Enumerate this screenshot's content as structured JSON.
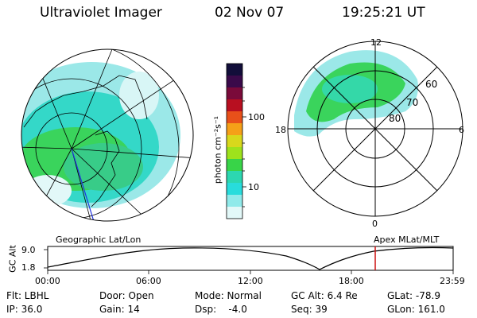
{
  "header": {
    "title": "Ultraviolet Imager",
    "date": "02 Nov 07",
    "time": "19:25:21 UT"
  },
  "colorbar": {
    "unit_label": "photon cm⁻²s⁻¹",
    "ticks": [
      "100",
      "10"
    ],
    "colors": [
      "#120e3a",
      "#3a0a4a",
      "#7a0a3a",
      "#b80f20",
      "#e8501a",
      "#f5a018",
      "#d8d81c",
      "#9ee21c",
      "#38d448",
      "#2cd7b0",
      "#28dcdc",
      "#90eaea",
      "#e2f8f8"
    ]
  },
  "left_panel": {
    "caption": "Geographic Lat/Lon"
  },
  "right_panel": {
    "caption": "Apex MLat/MLT",
    "mlt_labels": {
      "top": "12",
      "left": "18",
      "right": "6",
      "bottom": "0"
    },
    "lat_labels": [
      "60",
      "70",
      "80"
    ]
  },
  "timeline": {
    "ylabel": "GC Alt",
    "yticks": [
      "9.0",
      "1.8"
    ],
    "xticks": [
      "00:00",
      "06:00",
      "12:00",
      "18:00",
      "23:59"
    ]
  },
  "status": {
    "filter": "Flt: LBHL",
    "ip": "IP: 36.0",
    "door": "Door: Open",
    "gain": "Gain: 14",
    "mode": "Mode: Normal",
    "dsp": "Dsp:    -4.0",
    "gc_alt": "GC Alt: 6.4 Re",
    "seq": "Seq: 39",
    "glat": "GLat: -78.9",
    "glon": "GLon: 161.0"
  }
}
